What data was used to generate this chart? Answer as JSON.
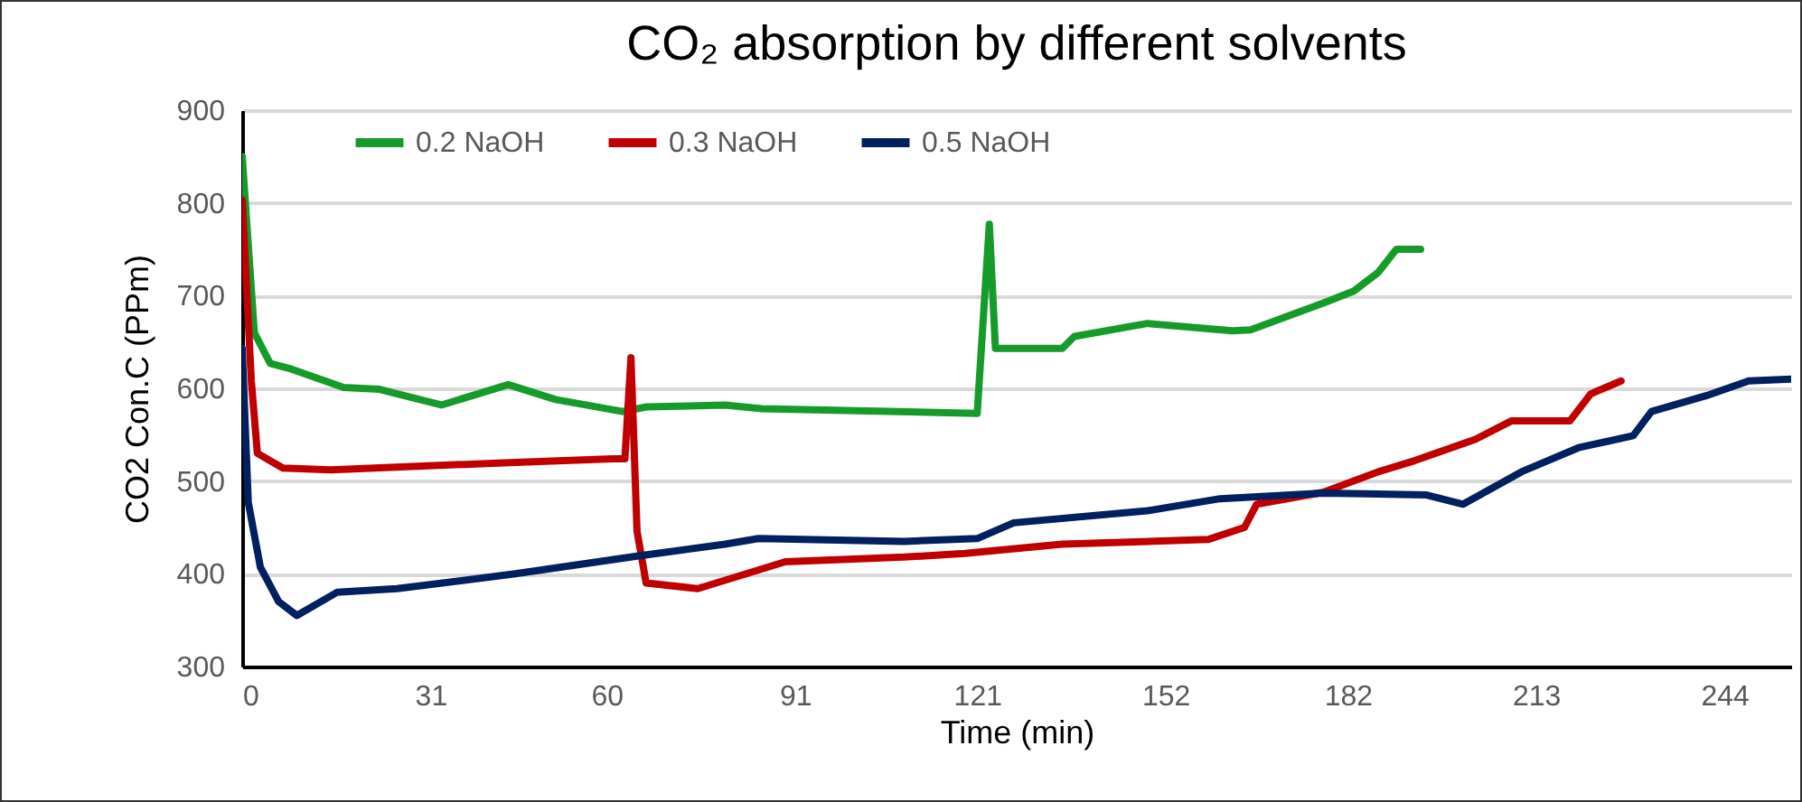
{
  "chart_data": {
    "type": "line",
    "title": "CO₂ absorption by different solvents",
    "xlabel": "Time (min)",
    "ylabel": "CO2 Con.C (PPm)",
    "xlim": [
      0,
      255
    ],
    "xticks": [
      0,
      31,
      60,
      91,
      121,
      152,
      182,
      213,
      244
    ],
    "ylim": [
      300,
      900
    ],
    "yticks": [
      300,
      400,
      500,
      600,
      700,
      800,
      900
    ],
    "grid": "y",
    "legend": "top",
    "marker": "none",
    "line_style": "solid",
    "series": [
      {
        "name": "0.2 NaOH",
        "color": "#169b2a",
        "x": [
          0,
          2,
          4.6,
          8,
          16.7,
          22.6,
          32.8,
          43.8,
          51.6,
          62.6,
          66.6,
          79.5,
          85.5,
          121,
          123,
          124,
          135,
          137,
          149,
          163,
          166,
          178,
          183,
          187,
          190,
          194
        ],
        "values": [
          850,
          660,
          627,
          621,
          601,
          599,
          582,
          604,
          588,
          575,
          580,
          582,
          578,
          573,
          777,
          643,
          643,
          656,
          670,
          662,
          663,
          692,
          705,
          725,
          750,
          750
        ]
      },
      {
        "name": "0.3 NaOH",
        "color": "#c00000",
        "x": [
          0,
          1.5,
          2.5,
          6.7,
          14.6,
          44,
          61,
          63,
          64,
          65,
          66.5,
          75,
          79.5,
          89.4,
          109,
          119,
          135,
          159,
          165,
          167,
          178,
          187,
          193,
          203,
          209,
          218.6,
          222,
          227
        ],
        "values": [
          803,
          608,
          530,
          514,
          512,
          520,
          524,
          524,
          633,
          446,
          390,
          384,
          393,
          413,
          418,
          422,
          432,
          437,
          450,
          475,
          488,
          510,
          522,
          545,
          565,
          565,
          594,
          608
        ]
      },
      {
        "name": "0.5 NaOH",
        "color": "#002060",
        "x": [
          0,
          1,
          3,
          6,
          9,
          15.6,
          25.5,
          45,
          65,
          79.5,
          85,
          109,
          121,
          127,
          149,
          161,
          178,
          195,
          201,
          210.6,
          220,
          229,
          232,
          241,
          248,
          255
        ],
        "values": [
          643,
          477,
          407,
          370,
          355,
          380,
          384,
          400,
          419,
          432,
          438,
          435,
          438,
          455,
          468,
          481,
          487,
          485,
          475,
          510,
          536,
          549,
          575,
          592,
          608,
          610
        ]
      }
    ]
  }
}
